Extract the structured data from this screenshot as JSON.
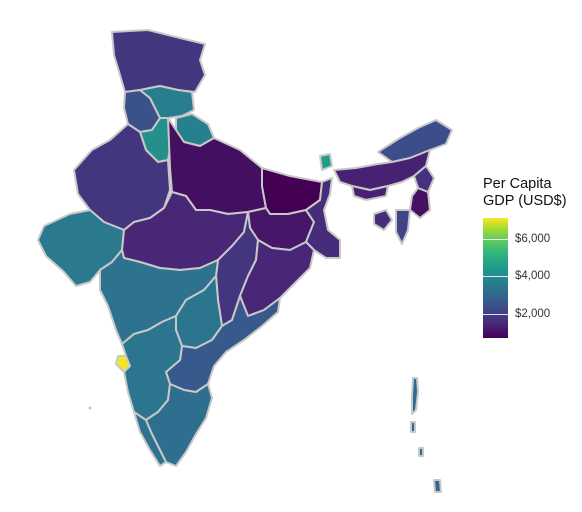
{
  "legend": {
    "title_line1": "Per Capita",
    "title_line2": "GDP (USD$)",
    "ticks": [
      {
        "label": "$6,000",
        "value": 6000
      },
      {
        "label": "$4,000",
        "value": 4000
      },
      {
        "label": "$2,000",
        "value": 2000
      }
    ],
    "range": [
      700,
      7100
    ]
  },
  "regions": [
    {
      "name": "Jammu and Kashmir",
      "value": 1700
    },
    {
      "name": "Himachal Pradesh",
      "value": 3400
    },
    {
      "name": "Punjab",
      "value": 2300
    },
    {
      "name": "Haryana",
      "value": 3900
    },
    {
      "name": "Uttarakhand",
      "value": 3500
    },
    {
      "name": "Rajasthan",
      "value": 1700
    },
    {
      "name": "Uttar Pradesh",
      "value": 950
    },
    {
      "name": "Bihar",
      "value": 700
    },
    {
      "name": "Sikkim",
      "value": 4200
    },
    {
      "name": "Gujarat",
      "value": 3300
    },
    {
      "name": "Madhya Pradesh",
      "value": 1400
    },
    {
      "name": "Jharkhand",
      "value": 1100
    },
    {
      "name": "West Bengal",
      "value": 1500
    },
    {
      "name": "Chhattisgarh",
      "value": 1700
    },
    {
      "name": "Odisha",
      "value": 1400
    },
    {
      "name": "Maharashtra",
      "value": 3100
    },
    {
      "name": "Telangana",
      "value": 3200
    },
    {
      "name": "Andhra Pradesh",
      "value": 2500
    },
    {
      "name": "Goa",
      "value": 7000
    },
    {
      "name": "Karnataka",
      "value": 3200
    },
    {
      "name": "Kerala",
      "value": 3100
    },
    {
      "name": "Tamil Nadu",
      "value": 3000
    },
    {
      "name": "Arunachal Pradesh",
      "value": 2200
    },
    {
      "name": "Assam",
      "value": 1300
    },
    {
      "name": "Meghalaya",
      "value": 1300
    },
    {
      "name": "Nagaland",
      "value": 1600
    },
    {
      "name": "Manipur",
      "value": 1000
    },
    {
      "name": "Mizoram",
      "value": 2000
    },
    {
      "name": "Tripura",
      "value": 1500
    },
    {
      "name": "Andaman and Nicobar Islands",
      "value": 2900
    }
  ],
  "colors": {
    "border": "#c8c8c8",
    "scale": [
      "#440154",
      "#482878",
      "#3e4989",
      "#31688e",
      "#26828e",
      "#1f9e89",
      "#35b779",
      "#6ece58",
      "#b5de2b",
      "#fde725"
    ]
  }
}
